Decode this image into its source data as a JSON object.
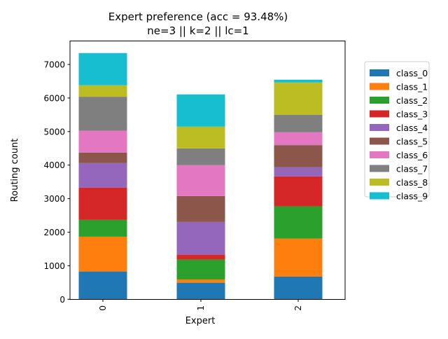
{
  "chart_data": {
    "type": "bar",
    "stacked": true,
    "title": "Expert preference (acc = 93.48%)",
    "subtitle": "ne=3 || k=2 || lc=1",
    "xlabel": "Expert",
    "ylabel": "Routing count",
    "categories": [
      "0",
      "1",
      "2"
    ],
    "ylim": [
      0,
      7700
    ],
    "yticks": [
      0,
      1000,
      2000,
      3000,
      4000,
      5000,
      6000,
      7000
    ],
    "grid": false,
    "legend_position": "outside-right",
    "series": [
      {
        "name": "class_0",
        "color": "#1f77b4",
        "values": [
          829,
          494,
          675
        ]
      },
      {
        "name": "class_1",
        "color": "#ff7f0e",
        "values": [
          1037,
          98,
          1136
        ]
      },
      {
        "name": "class_2",
        "color": "#2ca02c",
        "values": [
          502,
          592,
          961
        ]
      },
      {
        "name": "class_3",
        "color": "#d62728",
        "values": [
          961,
          146,
          891
        ]
      },
      {
        "name": "class_4",
        "color": "#9467bd",
        "values": [
          731,
          975,
          272
        ]
      },
      {
        "name": "class_5",
        "color": "#8c564b",
        "values": [
          313,
          773,
          661
        ]
      },
      {
        "name": "class_6",
        "color": "#e377c2",
        "values": [
          655,
          919,
          383
        ]
      },
      {
        "name": "class_7",
        "color": "#7f7f7f",
        "values": [
          1010,
          502,
          522
        ]
      },
      {
        "name": "class_8",
        "color": "#bcbd22",
        "values": [
          341,
          647,
          961
        ]
      },
      {
        "name": "class_9",
        "color": "#17becf",
        "values": [
          961,
          961,
          84
        ]
      }
    ]
  }
}
